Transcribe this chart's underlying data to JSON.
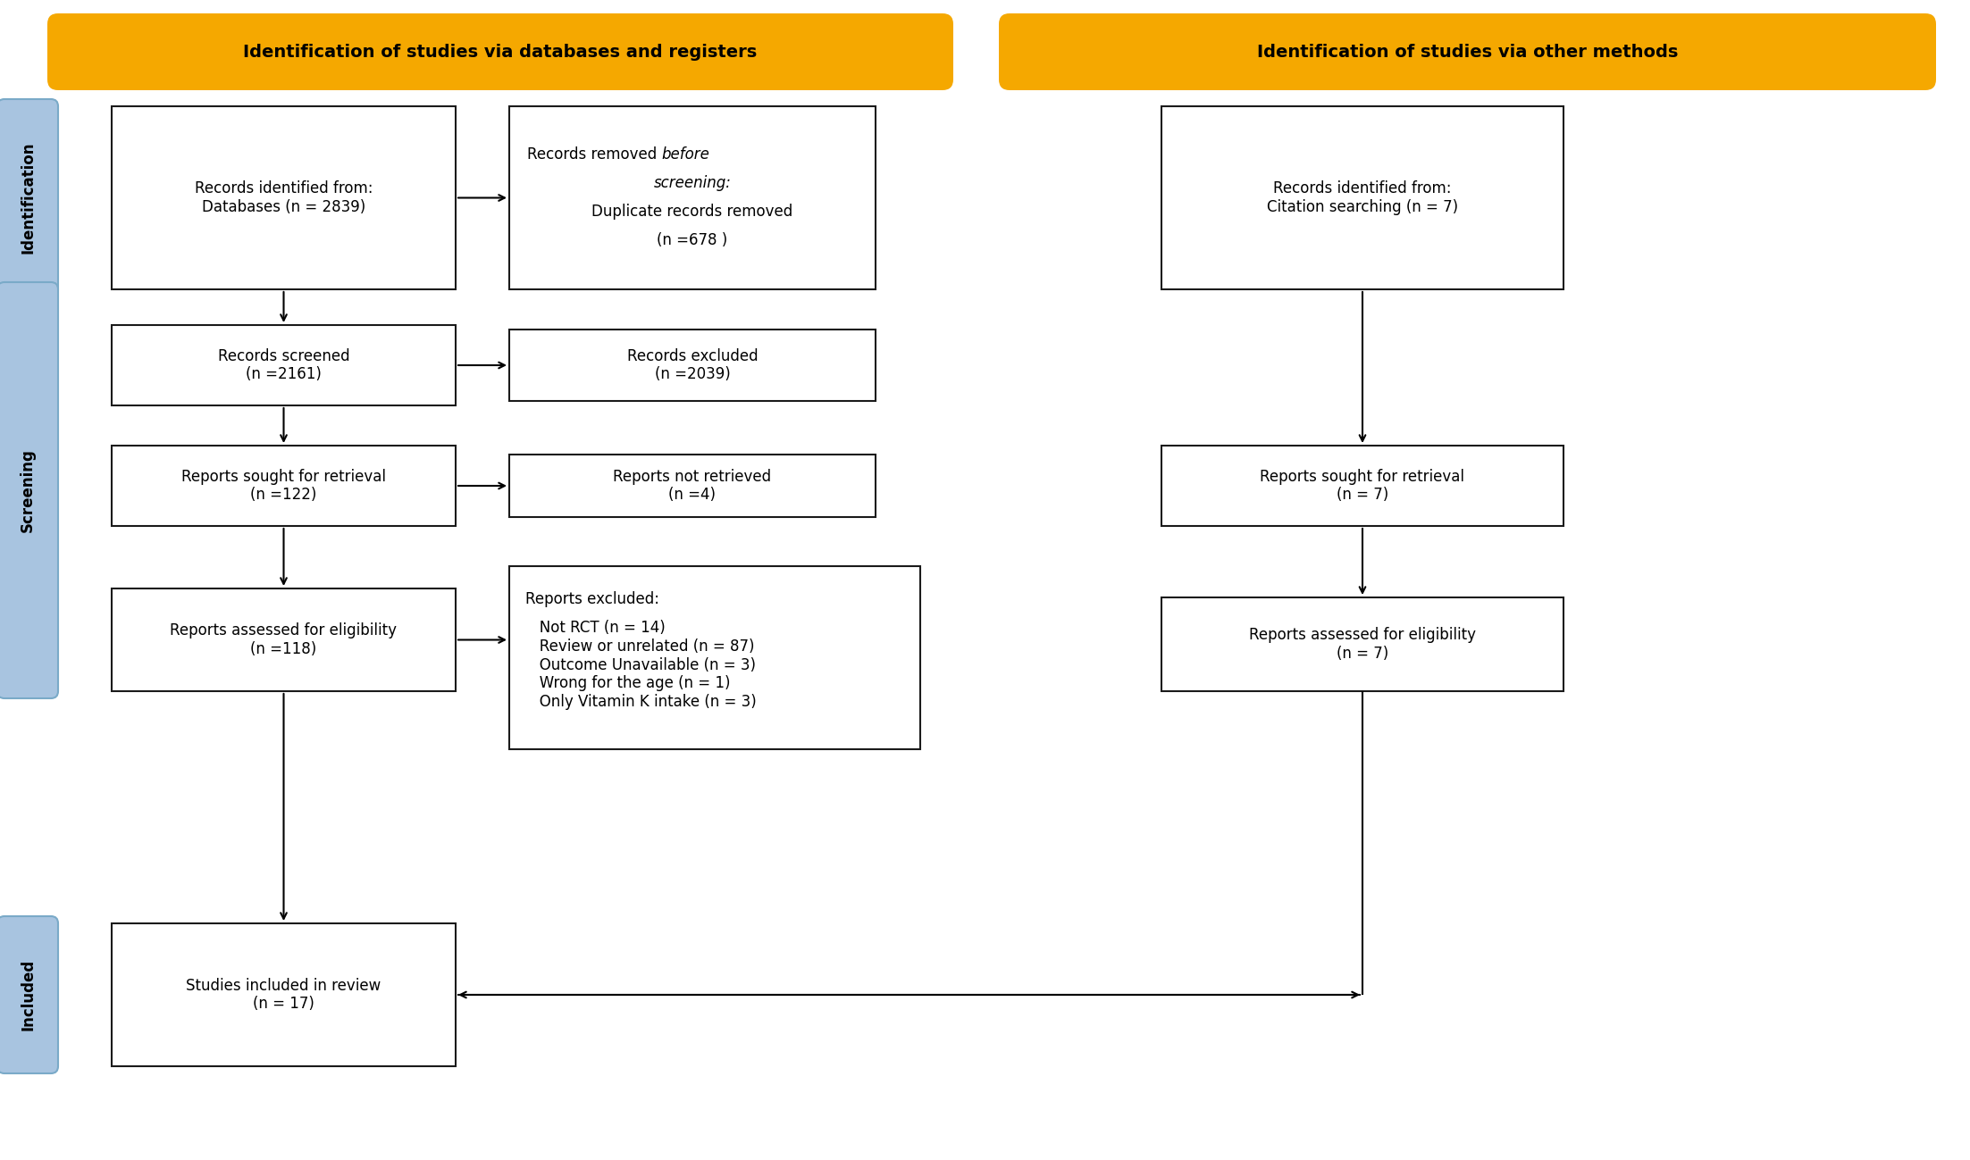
{
  "header_left": "Identification of studies via databases and registers",
  "header_right": "Identification of studies via other methods",
  "header_bg": "#F5A800",
  "box_border_color": "#1a1a1a",
  "box_bg": "#FFFFFF",
  "sidebar_color": "#A8C4E0",
  "sidebar_edge": "#7AAAC8",
  "boxes": {
    "db_identified": "Records identified from:\nDatabases (n = 2839)",
    "screened": "Records screened\n(n =2161)",
    "retrieval": "Reports sought for retrieval\n(n =122)",
    "eligibility": "Reports assessed for eligibility\n(n =118)",
    "included": "Studies included in review\n(n = 17)",
    "db_removed_line1": "Records removed ",
    "db_removed_before": "before",
    "db_removed_line2": "screening:",
    "db_removed_line3": "Duplicate records removed",
    "db_removed_line4": "(n =678 )",
    "excluded": "Records excluded\n(n =2039)",
    "not_retrieved": "Reports not retrieved\n(n =4)",
    "reports_excl_title": "Reports excluded:",
    "reports_excl_items": "   Not RCT (n = 14)\n   Review or unrelated (n = 87)\n   Outcome Unavailable (n = 3)\n   Wrong for the age (n = 1)\n   Only Vitamin K intake (n = 3)",
    "citation": "Records identified from:\nCitation searching (n = 7)",
    "retrieval_right": "Reports sought for retrieval\n(n = 7)",
    "eligibility_right": "Reports assessed for eligibility\n(n = 7)"
  },
  "font_size": 12,
  "header_font_size": 14,
  "sidebar_font_size": 12
}
